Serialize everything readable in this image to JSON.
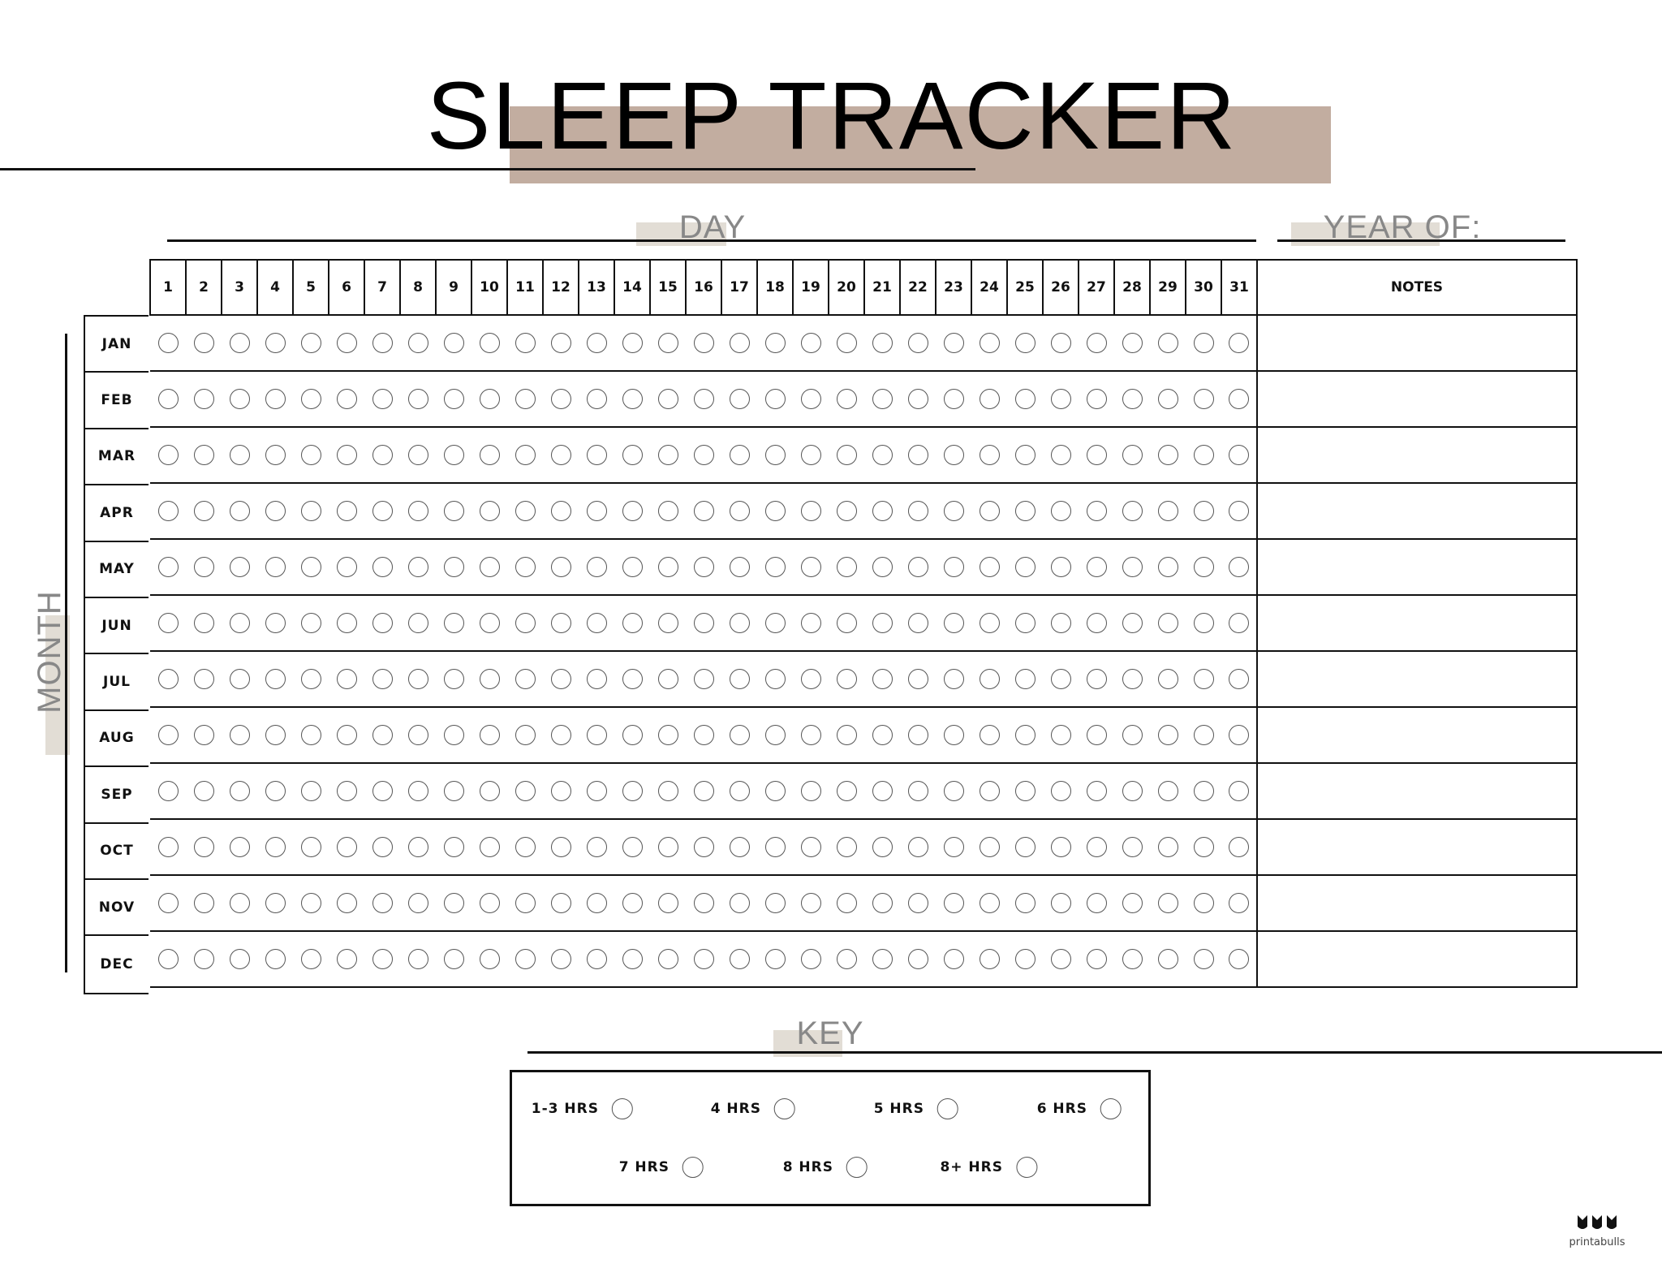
{
  "title": "SLEEP TRACKER",
  "accent_color": "#c2ada0",
  "label_box_color": "#e2ddd5",
  "day_label": "DAY",
  "year_label": "YEAR OF:",
  "month_label": "MONTH",
  "notes_label": "NOTES",
  "days": [
    "1",
    "2",
    "3",
    "4",
    "5",
    "6",
    "7",
    "8",
    "9",
    "10",
    "11",
    "12",
    "13",
    "14",
    "15",
    "16",
    "17",
    "18",
    "19",
    "20",
    "21",
    "22",
    "23",
    "24",
    "25",
    "26",
    "27",
    "28",
    "29",
    "30",
    "31"
  ],
  "months": [
    "JAN",
    "FEB",
    "MAR",
    "APR",
    "MAY",
    "JUN",
    "JUL",
    "AUG",
    "SEP",
    "OCT",
    "NOV",
    "DEC"
  ],
  "key": {
    "label": "KEY",
    "items": [
      "1-3 HRS",
      "4 HRS",
      "5 HRS",
      "6 HRS",
      "7 HRS",
      "8 HRS",
      "8+ HRS"
    ]
  },
  "logo": {
    "text": "printabulls",
    "icon": "bulldog-faces-logo-icon"
  }
}
